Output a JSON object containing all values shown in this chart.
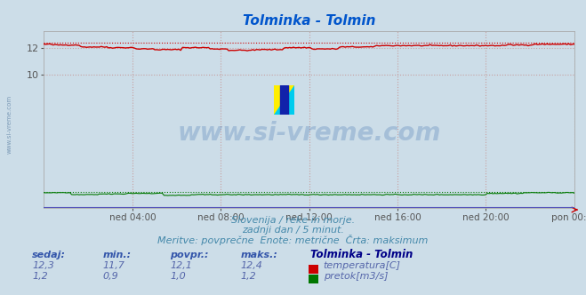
{
  "title": "Tolminka - Tolmin",
  "title_color": "#0055cc",
  "bg_color": "#ccdde8",
  "plot_bg_color": "#ccdde8",
  "x_tick_labels": [
    "ned 04:00",
    "ned 08:00",
    "ned 12:00",
    "ned 16:00",
    "ned 20:00",
    "pon 00:00"
  ],
  "x_tick_positions": [
    0.167,
    0.333,
    0.5,
    0.667,
    0.833,
    1.0
  ],
  "ylim": [
    0,
    13.3
  ],
  "yticks": [
    10,
    12
  ],
  "grid_color": "#c8a0a0",
  "grid_color_x": "#c8a0a0",
  "temp_color": "#cc0000",
  "flow_color": "#007700",
  "height_color": "#5555bb",
  "watermark_text": "www.si-vreme.com",
  "watermark_color": "#3366aa",
  "watermark_alpha": 0.25,
  "subtitle1": "Slovenija / reke in morje.",
  "subtitle2": "zadnji dan / 5 minut.",
  "subtitle3": "Meritve: povprečne  Enote: metrične  Črta: maksimum",
  "subtitle_color": "#4488aa",
  "legend_title": "Tolminka - Tolmin",
  "legend_title_color": "#000088",
  "label_color": "#3355aa",
  "sedaj_label": "sedaj:",
  "min_label": "min.:",
  "povpr_label": "povpr.:",
  "maks_label": "maks.:",
  "temp_sedaj": "12,3",
  "temp_min": "11,7",
  "temp_povpr": "12,1",
  "temp_maks": "12,4",
  "flow_sedaj": "1,2",
  "flow_min": "0,9",
  "flow_povpr": "1,0",
  "flow_maks": "1,2",
  "temp_label": "temperatura[C]",
  "flow_label": "pretok[m3/s]",
  "n_points": 288,
  "temp_base": 12.1,
  "temp_max_val": 12.4,
  "flow_base": 1.0,
  "flow_max_val": 1.2,
  "left_label": "www.si-vreme.com",
  "left_label_color": "#6688aa",
  "val_color": "#5566aa"
}
